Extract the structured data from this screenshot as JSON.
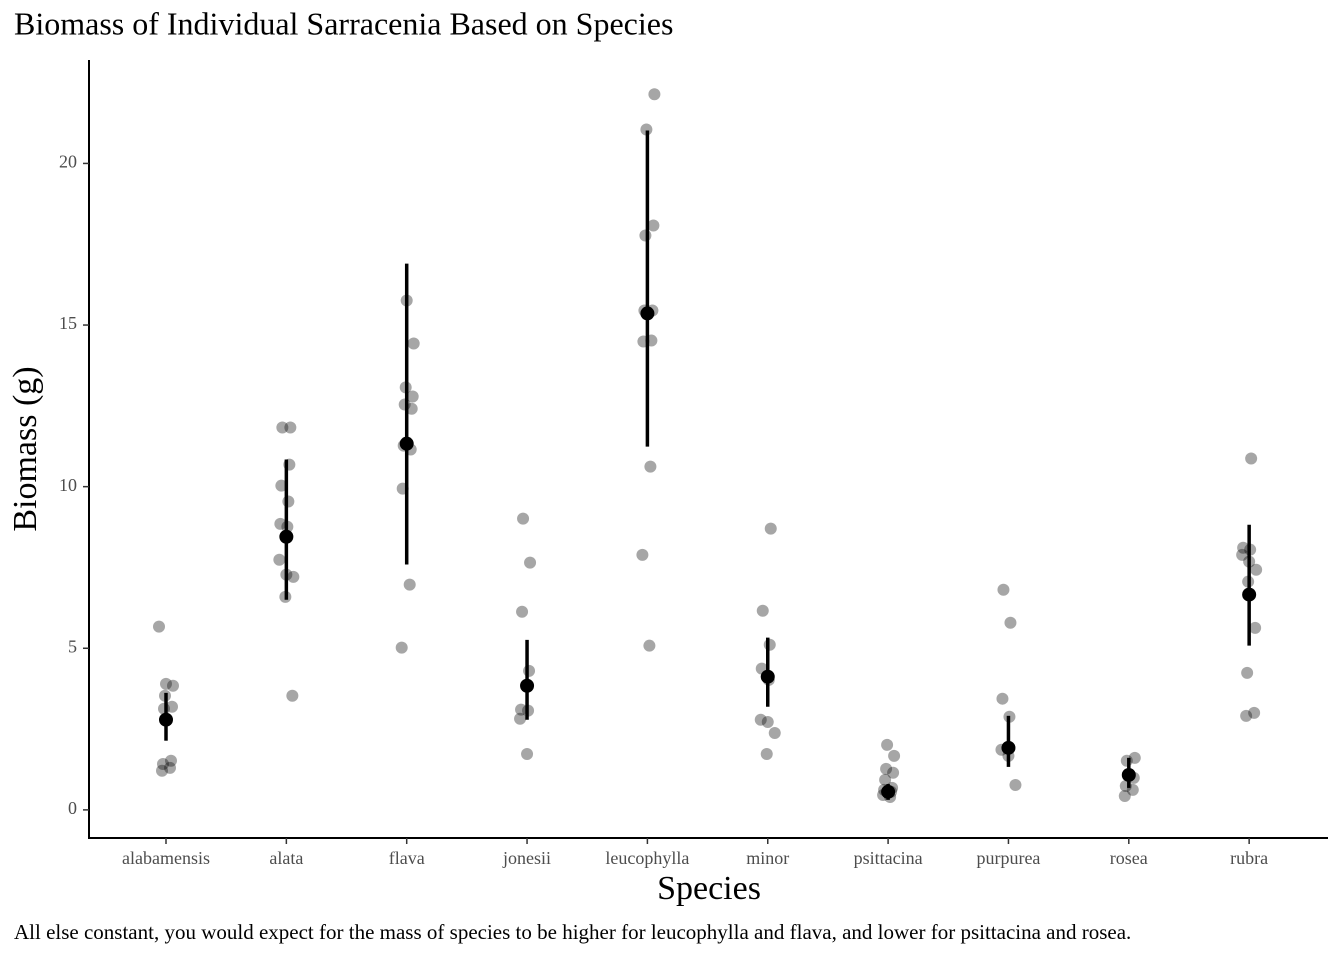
{
  "chart_data": {
    "type": "strip",
    "title": "Biomass of Individual Sarracenia Based on Species",
    "x_label": "Species",
    "y_label": "Biomass (g)",
    "caption": "All else constant, you would expect for the mass of species to be higher for leucophylla and flava, and lower for psittacina and rosea.",
    "categories": [
      "alabamensis",
      "alata",
      "flava",
      "jonesii",
      "leucophylla",
      "minor",
      "psittacina",
      "purpurea",
      "rosea",
      "rubra"
    ],
    "points": [
      [
        5.67,
        3.9,
        3.84,
        3.53,
        3.19,
        3.13,
        1.52,
        1.42,
        1.3,
        1.21
      ],
      [
        11.83,
        11.83,
        10.68,
        10.03,
        9.54,
        8.85,
        8.76,
        7.74,
        7.28,
        7.21,
        6.59,
        3.53
      ],
      [
        15.76,
        14.43,
        13.07,
        12.79,
        12.54,
        12.41,
        11.27,
        11.15,
        9.94,
        6.97,
        5.02
      ],
      [
        9.01,
        7.65,
        6.13,
        4.3,
        3.1,
        3.07,
        2.82,
        1.73
      ],
      [
        22.14,
        21.05,
        18.08,
        17.77,
        15.45,
        15.45,
        14.52,
        14.49,
        10.62,
        7.89,
        5.08
      ],
      [
        8.7,
        6.16,
        5.11,
        4.37,
        4.02,
        2.79,
        2.72,
        2.38,
        1.73
      ],
      [
        2.01,
        1.67,
        1.27,
        1.15,
        0.93,
        0.68,
        0.62,
        0.56,
        0.46,
        0.4
      ],
      [
        6.81,
        5.79,
        3.44,
        2.88,
        1.86,
        1.67,
        0.77
      ],
      [
        1.61,
        1.52,
        0.99,
        0.74,
        0.62,
        0.43
      ],
      [
        10.87,
        8.11,
        8.05,
        7.89,
        7.68,
        7.43,
        7.06,
        5.63,
        4.24,
        3.0,
        2.91
      ]
    ],
    "means": [
      2.79,
      8.45,
      11.33,
      3.84,
      15.36,
      4.12,
      0.56,
      1.92,
      1.08,
      6.66
    ],
    "lower": [
      2.14,
      6.5,
      7.59,
      2.79,
      11.24,
      3.19,
      0.31,
      1.33,
      0.68,
      5.08
    ],
    "upper": [
      3.62,
      10.84,
      16.9,
      5.26,
      21.02,
      5.33,
      0.8,
      2.91,
      1.61,
      8.82
    ],
    "point_color": "rgba(0,0,0,0.35)",
    "mean_color": "#000000",
    "ylim": [
      -0.87,
      23.2
    ],
    "yticks": [
      0,
      5,
      10,
      15,
      20
    ]
  }
}
